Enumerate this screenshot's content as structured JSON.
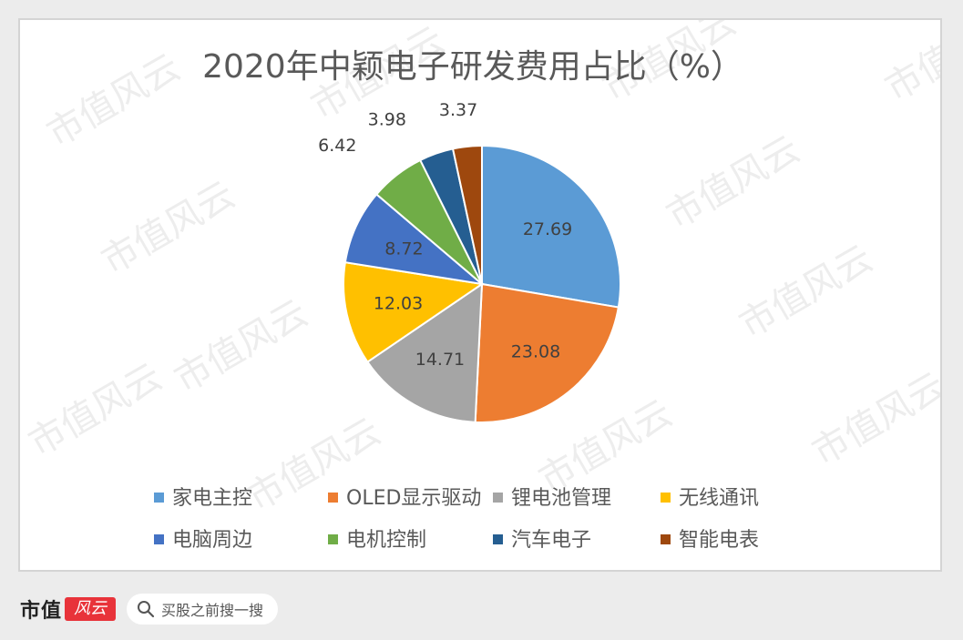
{
  "chart_data": {
    "type": "pie",
    "title": "2020年中颖电子研发费用占比（%）",
    "categories": [
      "家电主控",
      "OLED显示驱动",
      "锂电池管理",
      "无线通讯",
      "电脑周边",
      "电机控制",
      "汽车电子",
      "智能电表"
    ],
    "values": [
      27.69,
      23.08,
      14.71,
      12.03,
      8.72,
      6.42,
      3.98,
      3.37
    ],
    "value_labels": [
      "27.69",
      "23.08",
      "14.71",
      "12.03",
      "8.72",
      "6.42",
      "3.98",
      "3.37"
    ],
    "colors": [
      "#5b9bd5",
      "#ed7d31",
      "#a5a5a5",
      "#ffc000",
      "#4472c4",
      "#70ad47",
      "#255e91",
      "#9e480e"
    ],
    "legend_position": "bottom"
  },
  "watermark": {
    "text": "市值风云"
  },
  "footer": {
    "brand": "市值",
    "seal": "风云",
    "search_placeholder": "买股之前搜一搜"
  }
}
